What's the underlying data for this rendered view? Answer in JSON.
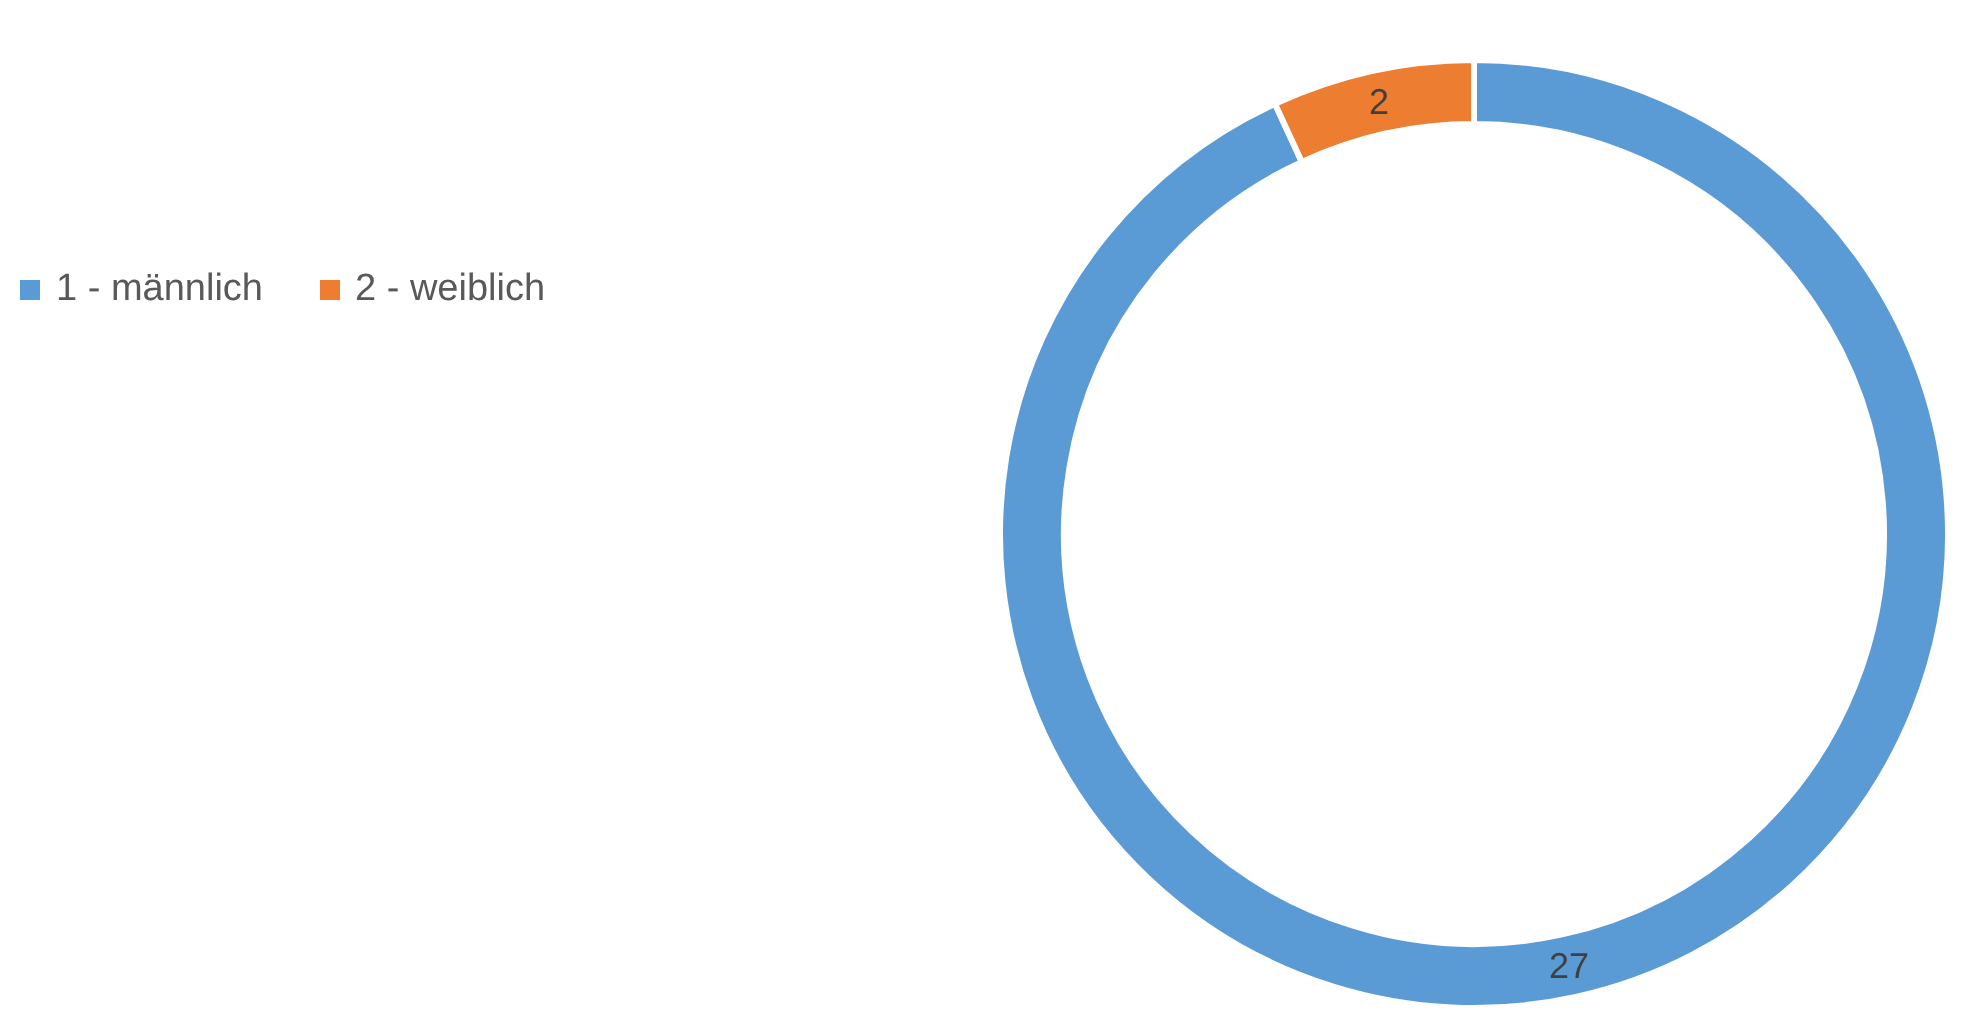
{
  "chart_data": {
    "type": "donut",
    "categories": [
      "1 - männlich",
      "2 - weiblich"
    ],
    "values": [
      27,
      2
    ],
    "colors": [
      "#5b9bd5",
      "#ed7d31"
    ],
    "data_labels": true,
    "legend": "left"
  }
}
